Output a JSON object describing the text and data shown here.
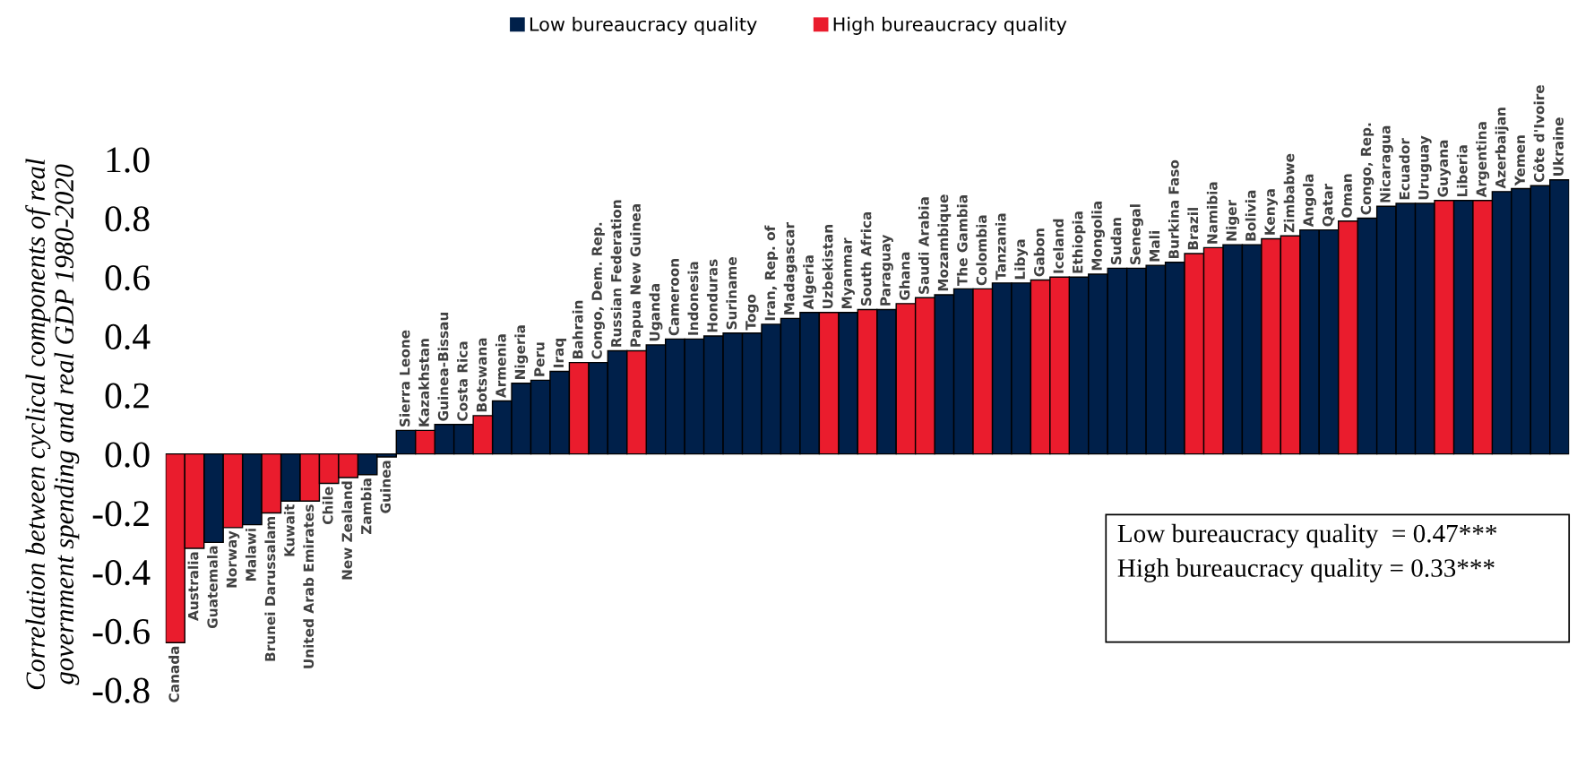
{
  "chart_data": {
    "type": "bar",
    "ylabel": "Correlation between cyclical components of real\ngovernment spending and real GDP 1980-2020",
    "categories": [
      "Canada",
      "Australia",
      "Guatemala",
      "Norway",
      "Malawi",
      "Brunei Darussalam",
      "Kuwait",
      "United Arab Emirates",
      "Chile",
      "New Zealand",
      "Zambia",
      "Guinea",
      "Sierra Leone",
      "Kazakhstan",
      "Guinea-Bissau",
      "Costa Rica",
      "Botswana",
      "Armenia",
      "Nigeria",
      "Peru",
      "Iraq",
      "Bahrain",
      "Congo, Dem. Rep.",
      "Russian Federation",
      "Papua New Guinea",
      "Uganda",
      "Cameroon",
      "Indonesia",
      "Honduras",
      "Suriname",
      "Togo",
      "Iran, Rep. of",
      "Madagascar",
      "Algeria",
      "Uzbekistan",
      "Myanmar",
      "South Africa",
      "Paraguay",
      "Ghana",
      "Saudi Arabia",
      "Mozambique",
      "The Gambia",
      "Colombia",
      "Tanzania",
      "Libya",
      "Gabon",
      "Iceland",
      "Ethiopia",
      "Mongolia",
      "Sudan",
      "Senegal",
      "Mali",
      "Burkina Faso",
      "Brazil",
      "Namibia",
      "Niger",
      "Bolivia",
      "Kenya",
      "Zimbabwe",
      "Angola",
      "Qatar",
      "Oman",
      "Congo, Rep.",
      "Nicaragua",
      "Ecuador",
      "Uruguay",
      "Guyana",
      "Liberia",
      "Argentina",
      "Azerbaijan",
      "Yemen",
      "Côte d'Ivoire",
      "Ukraine"
    ],
    "series": [
      {
        "name": "Low bureaucracy quality",
        "color": "#00204a",
        "values": [
          null,
          null,
          -0.3,
          null,
          -0.24,
          null,
          -0.16,
          null,
          null,
          null,
          -0.07,
          -0.01,
          0.08,
          null,
          0.1,
          0.1,
          null,
          0.18,
          0.24,
          0.25,
          0.28,
          null,
          0.31,
          0.35,
          null,
          0.37,
          0.39,
          0.39,
          0.4,
          0.41,
          0.41,
          0.44,
          0.46,
          0.48,
          null,
          0.48,
          null,
          0.49,
          null,
          null,
          0.54,
          0.56,
          null,
          0.58,
          0.58,
          null,
          null,
          0.6,
          0.61,
          0.63,
          0.63,
          0.64,
          0.65,
          null,
          null,
          0.71,
          0.71,
          null,
          null,
          0.76,
          0.76,
          null,
          0.8,
          0.84,
          0.85,
          0.85,
          null,
          0.86,
          null,
          0.89,
          0.9,
          0.91,
          0.93
        ]
      },
      {
        "name": "High bureaucracy quality",
        "color": "#ea1c2d",
        "values": [
          -0.64,
          -0.32,
          null,
          -0.25,
          null,
          -0.2,
          null,
          -0.16,
          -0.1,
          -0.08,
          null,
          null,
          null,
          0.08,
          null,
          null,
          0.13,
          null,
          null,
          null,
          null,
          0.31,
          null,
          null,
          0.35,
          null,
          null,
          null,
          null,
          null,
          null,
          null,
          null,
          null,
          0.48,
          null,
          0.49,
          null,
          0.51,
          0.53,
          null,
          null,
          0.56,
          null,
          null,
          0.59,
          0.6,
          null,
          null,
          null,
          null,
          null,
          null,
          0.68,
          0.7,
          null,
          null,
          0.73,
          0.74,
          null,
          null,
          0.79,
          null,
          null,
          null,
          null,
          0.86,
          null,
          0.86,
          null,
          null,
          null,
          null
        ]
      }
    ],
    "ylim": [
      -0.8,
      1.0
    ],
    "yticks": [
      {
        "value": -0.8,
        "label": "-0.8"
      },
      {
        "value": -0.6,
        "label": "-0.6"
      },
      {
        "value": -0.4,
        "label": "-0.4"
      },
      {
        "value": -0.2,
        "label": "-0.2"
      },
      {
        "value": 0.0,
        "label": "0.0"
      },
      {
        "value": 0.2,
        "label": "0.2"
      },
      {
        "value": 0.4,
        "label": "0.4"
      },
      {
        "value": 0.6,
        "label": "0.6"
      },
      {
        "value": 0.8,
        "label": "0.8"
      },
      {
        "value": 1.0,
        "label": "1.0"
      }
    ],
    "legend": "top",
    "grid": false,
    "annotations": [
      "Low bureaucracy quality  = 0.47***",
      "High bureaucracy quality = 0.33***"
    ]
  }
}
